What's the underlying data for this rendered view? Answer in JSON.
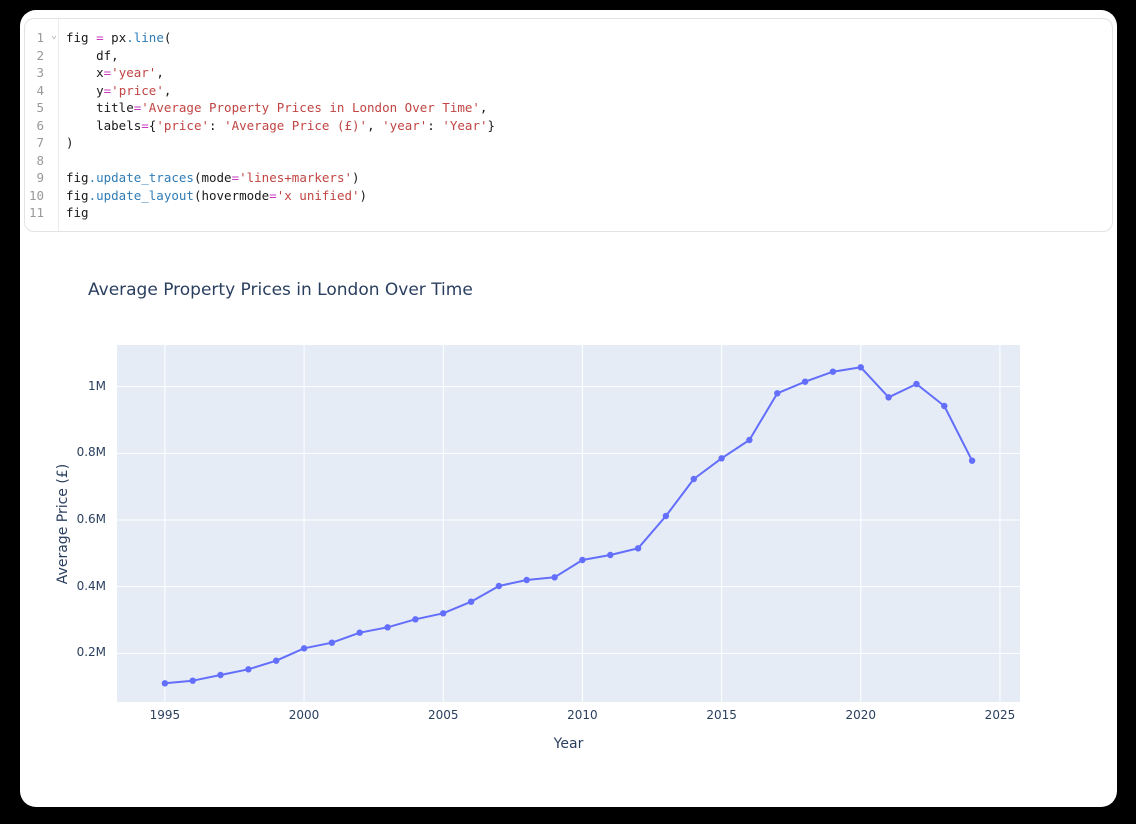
{
  "editor": {
    "fold_chevron": "⌄",
    "colors": {
      "plain": "#1a1a1a",
      "operator": "#c93ac0",
      "function": "#2f7cb6",
      "string": "#c04543",
      "line_number": "#999999"
    },
    "lines": [
      {
        "num": "1",
        "fold": true,
        "tokens": [
          [
            "fig ",
            "p"
          ],
          [
            "=",
            "o"
          ],
          [
            " px",
            "p"
          ],
          [
            ".line",
            "f"
          ],
          [
            "(",
            "p"
          ]
        ]
      },
      {
        "num": "2",
        "fold": false,
        "tokens": [
          [
            "    df,",
            "p"
          ]
        ]
      },
      {
        "num": "3",
        "fold": false,
        "tokens": [
          [
            "    x",
            "p"
          ],
          [
            "=",
            "o"
          ],
          [
            "'year'",
            "s"
          ],
          [
            ",",
            "p"
          ]
        ]
      },
      {
        "num": "4",
        "fold": false,
        "tokens": [
          [
            "    y",
            "p"
          ],
          [
            "=",
            "o"
          ],
          [
            "'price'",
            "s"
          ],
          [
            ",",
            "p"
          ]
        ]
      },
      {
        "num": "5",
        "fold": false,
        "tokens": [
          [
            "    title",
            "p"
          ],
          [
            "=",
            "o"
          ],
          [
            "'Average Property Prices in London Over Time'",
            "s"
          ],
          [
            ",",
            "p"
          ]
        ]
      },
      {
        "num": "6",
        "fold": false,
        "tokens": [
          [
            "    labels",
            "p"
          ],
          [
            "=",
            "o"
          ],
          [
            "{",
            "p"
          ],
          [
            "'price'",
            "s"
          ],
          [
            ": ",
            "p"
          ],
          [
            "'Average Price (£)'",
            "s"
          ],
          [
            ", ",
            "p"
          ],
          [
            "'year'",
            "s"
          ],
          [
            ": ",
            "p"
          ],
          [
            "'Year'",
            "s"
          ],
          [
            "}",
            "p"
          ]
        ]
      },
      {
        "num": "7",
        "fold": false,
        "tokens": [
          [
            ")",
            "p"
          ]
        ]
      },
      {
        "num": "8",
        "fold": false,
        "tokens": []
      },
      {
        "num": "9",
        "fold": false,
        "tokens": [
          [
            "fig",
            "p"
          ],
          [
            ".update_traces",
            "f"
          ],
          [
            "(mode",
            "p"
          ],
          [
            "=",
            "o"
          ],
          [
            "'lines+markers'",
            "s"
          ],
          [
            ")",
            "p"
          ]
        ]
      },
      {
        "num": "10",
        "fold": false,
        "tokens": [
          [
            "fig",
            "p"
          ],
          [
            ".update_layout",
            "f"
          ],
          [
            "(hovermode",
            "p"
          ],
          [
            "=",
            "o"
          ],
          [
            "'x unified'",
            "s"
          ],
          [
            ")",
            "p"
          ]
        ]
      },
      {
        "num": "11",
        "fold": false,
        "tokens": [
          [
            "fig",
            "p"
          ]
        ]
      }
    ]
  },
  "chart_data": {
    "type": "line",
    "mode": "lines+markers",
    "title": "Average Property Prices in London Over Time",
    "xlabel": "Year",
    "ylabel": "Average Price (£)",
    "x": [
      1995,
      1996,
      1997,
      1998,
      1999,
      2000,
      2001,
      2002,
      2003,
      2004,
      2005,
      2006,
      2007,
      2008,
      2009,
      2010,
      2011,
      2012,
      2013,
      2014,
      2015,
      2016,
      2017,
      2018,
      2019,
      2020,
      2021,
      2022,
      2023,
      2024
    ],
    "y": [
      110000,
      118000,
      135000,
      152000,
      178000,
      215000,
      232000,
      262000,
      278000,
      302000,
      320000,
      355000,
      402000,
      420000,
      428000,
      480000,
      495000,
      515000,
      612000,
      723000,
      785000,
      840000,
      980000,
      1015000,
      1045000,
      1058000,
      968000,
      1008000,
      942000,
      778000
    ],
    "xlim": [
      1993.28,
      2025.72
    ],
    "ylim": [
      54000,
      1125000
    ],
    "xticks": {
      "values": [
        1995,
        2000,
        2005,
        2010,
        2015,
        2020,
        2025
      ],
      "labels": [
        "1995",
        "2000",
        "2005",
        "2010",
        "2015",
        "2020",
        "2025"
      ]
    },
    "yticks": {
      "values": [
        200000,
        400000,
        600000,
        800000,
        1000000
      ],
      "labels": [
        "0.2M",
        "0.4M",
        "0.6M",
        "0.8M",
        "1M"
      ]
    },
    "line_color": "#636efa",
    "plot_bgcolor": "#e5ecf6",
    "grid_color": "#ffffff",
    "font_color": "#2a3f5f",
    "grid": true,
    "legend": "none"
  }
}
